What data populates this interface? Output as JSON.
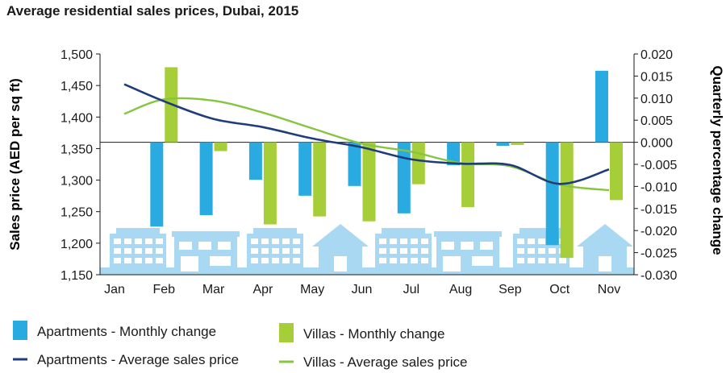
{
  "chart_data": {
    "type": "bar",
    "title": "Average residential sales prices, Dubai, 2015",
    "categories": [
      "Jan",
      "Feb",
      "Mar",
      "Apr",
      "May",
      "Jun",
      "Jul",
      "Aug",
      "Sep",
      "Oct",
      "Nov"
    ],
    "ylabel_left": "Sales price (AED per sq ft)",
    "ylabel_right": "Quarterly percentage change",
    "yticks_left": [
      "1,500",
      "1,450",
      "1,400",
      "1,350",
      "1,300",
      "1,250",
      "1,200",
      "1,150"
    ],
    "yticks_right": [
      "0.020",
      "0.015",
      "0.010",
      "0.005",
      "0.000",
      "-0.005",
      "-0.010",
      "-0.015",
      "-0.020",
      "-0.025",
      "-0.030"
    ],
    "ylim_left": [
      1150,
      1500
    ],
    "ylim_right": [
      -0.03,
      0.02
    ],
    "bar_series": [
      {
        "name": "Apartments - Monthly change",
        "color": "#29abe2",
        "values": [
          null,
          -0.0191,
          -0.0165,
          -0.0085,
          -0.0121,
          -0.0099,
          -0.0161,
          -0.0052,
          -0.0008,
          -0.0233,
          0.0162
        ]
      },
      {
        "name": "Villas - Monthly change",
        "color": "#a6ce39",
        "values": [
          null,
          0.017,
          -0.002,
          -0.0186,
          -0.0168,
          -0.0179,
          -0.0095,
          -0.0147,
          -0.0006,
          -0.0262,
          -0.0131
        ]
      }
    ],
    "line_series": [
      {
        "name": "Apartments - Average sales price",
        "color": "#1f3d7a",
        "values": [
          1452,
          1425,
          1397,
          1384,
          1366,
          1352,
          1333,
          1326,
          1324,
          1294,
          1317
        ]
      },
      {
        "name": "Villas - Average sales price",
        "color": "#86c540",
        "values": [
          1405,
          1428,
          1426,
          1407,
          1382,
          1358,
          1345,
          1327,
          1322,
          1293,
          1284
        ]
      }
    ],
    "legend_position": "bottom"
  }
}
